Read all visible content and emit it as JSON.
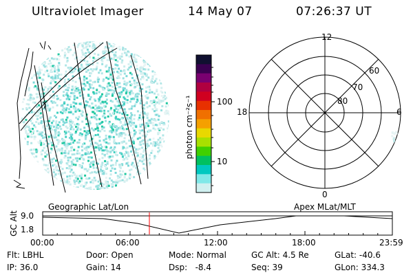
{
  "header": {
    "instrument": "Ultraviolet Imager",
    "date": "14 May 07",
    "time": "07:26:37 UT"
  },
  "colorbar": {
    "label": "photon cm⁻²s⁻¹",
    "ticks": [
      "100",
      "10"
    ],
    "colors": [
      "#101030",
      "#3a0050",
      "#7a0070",
      "#b00040",
      "#d00020",
      "#e83000",
      "#f07000",
      "#f5a000",
      "#e8d800",
      "#a8e000",
      "#40d000",
      "#00c060",
      "#00c8c0",
      "#80e8e8",
      "#d0f0f0"
    ]
  },
  "polar": {
    "mlt_labels": {
      "top": "12",
      "left": "18",
      "right": "6",
      "bottom": "0"
    },
    "lat_labels": [
      "60",
      "70",
      "80"
    ]
  },
  "timeline": {
    "left_title": "Geographic Lat/Lon",
    "right_title": "Apex MLat/MLT",
    "ylabel": "GC Alt",
    "y_ticks": [
      "9.0",
      "1.8"
    ],
    "x_ticks": [
      "00:00",
      "06:00",
      "12:00",
      "18:00",
      "23:59"
    ],
    "current_time_color": "#ff0000"
  },
  "footer": {
    "row1": [
      "Flt: LBHL",
      "Door: Open",
      "Mode: Normal",
      "GC Alt: 4.5 Re",
      "GLat: -40.6"
    ],
    "row2": [
      "IP: 36.0",
      "Gain: 14",
      "Dsp:   -8.4",
      "Seq: 39",
      "GLon: 334.3"
    ]
  }
}
